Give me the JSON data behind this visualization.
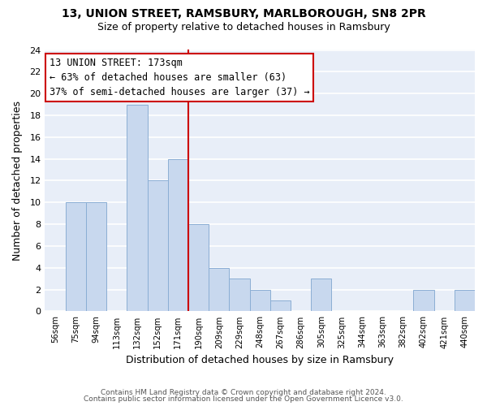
{
  "title1": "13, UNION STREET, RAMSBURY, MARLBOROUGH, SN8 2PR",
  "title2": "Size of property relative to detached houses in Ramsbury",
  "xlabel": "Distribution of detached houses by size in Ramsbury",
  "ylabel": "Number of detached properties",
  "bar_labels": [
    "56sqm",
    "75sqm",
    "94sqm",
    "113sqm",
    "132sqm",
    "152sqm",
    "171sqm",
    "190sqm",
    "209sqm",
    "229sqm",
    "248sqm",
    "267sqm",
    "286sqm",
    "305sqm",
    "325sqm",
    "344sqm",
    "363sqm",
    "382sqm",
    "402sqm",
    "421sqm",
    "440sqm"
  ],
  "bar_values": [
    0,
    10,
    10,
    0,
    19,
    12,
    14,
    8,
    4,
    3,
    2,
    1,
    0,
    3,
    0,
    0,
    0,
    0,
    2,
    0,
    2
  ],
  "bar_color": "#c8d8ee",
  "bar_edge_color": "#8baed4",
  "property_line_x": 6.5,
  "annotation_title": "13 UNION STREET: 173sqm",
  "annotation_line1": "← 63% of detached houses are smaller (63)",
  "annotation_line2": "37% of semi-detached houses are larger (37) →",
  "annotation_box_color": "#ffffff",
  "annotation_box_edge": "#cc0000",
  "vline_color": "#cc0000",
  "ylim": [
    0,
    24
  ],
  "yticks": [
    0,
    2,
    4,
    6,
    8,
    10,
    12,
    14,
    16,
    18,
    20,
    22,
    24
  ],
  "bg_color": "#e8eef8",
  "grid_color": "#ffffff",
  "footer1": "Contains HM Land Registry data © Crown copyright and database right 2024.",
  "footer2": "Contains public sector information licensed under the Open Government Licence v3.0.",
  "title1_fontsize": 10,
  "title2_fontsize": 9
}
